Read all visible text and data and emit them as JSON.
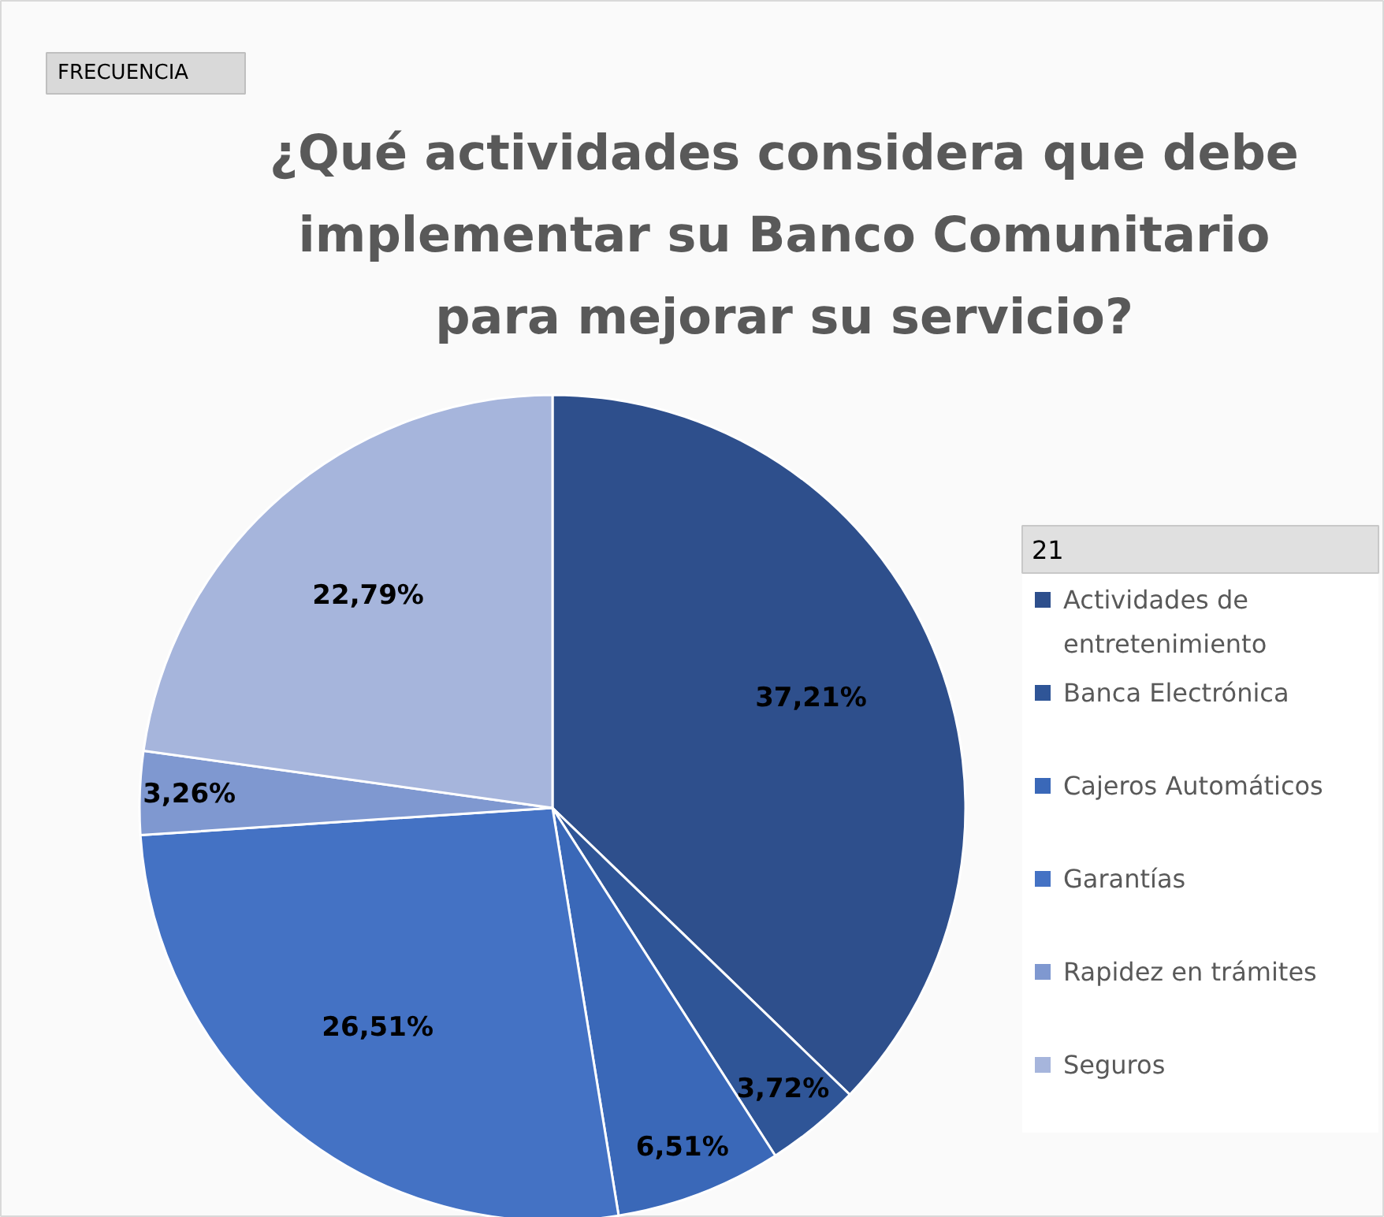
{
  "chart_data": {
    "type": "pie",
    "title": "¿Qué actividades considera que debe implementar su Banco Comunitario para mejorar su servicio?",
    "annotations": [
      "FRECUENCIA"
    ],
    "legend_title": "21",
    "categories": [
      "Actividades de entretenimiento",
      "Banca Electrónica",
      "Cajeros Automáticos",
      "Garantías",
      "Rapidez en trámites",
      "Seguros"
    ],
    "values": [
      37.21,
      3.72,
      6.51,
      26.51,
      3.26,
      22.79
    ],
    "value_labels": [
      "37,21%",
      "3,72%",
      "6,51%",
      "26,51%",
      "3,26%",
      "22,79%"
    ],
    "colors": [
      "#2e4f8c",
      "#2f5597",
      "#3a68b8",
      "#4472c4",
      "#7f98d0",
      "#a6b5dc"
    ],
    "legend": "right"
  }
}
